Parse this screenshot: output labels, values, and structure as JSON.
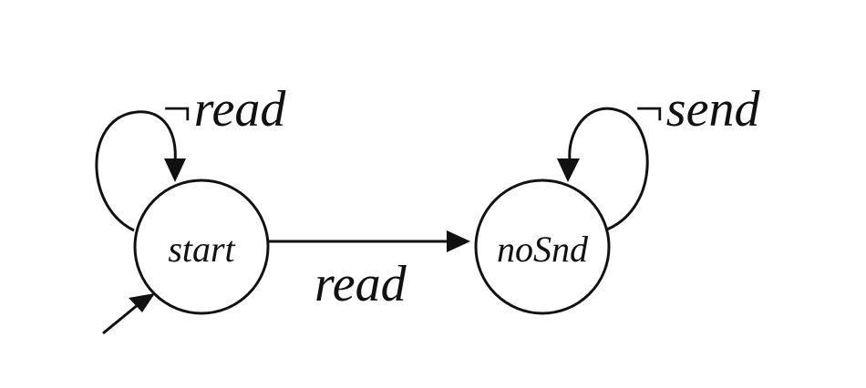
{
  "diagram": {
    "type": "state-machine",
    "states": [
      {
        "id": "start",
        "label": "start",
        "initial": true
      },
      {
        "id": "noSnd",
        "label": "noSnd",
        "initial": false
      }
    ],
    "transitions": [
      {
        "from": "start",
        "to": "start",
        "label": "¬read"
      },
      {
        "from": "start",
        "to": "noSnd",
        "label": "read"
      },
      {
        "from": "noSnd",
        "to": "noSnd",
        "label": "¬send"
      }
    ],
    "colors": {
      "ink": "#111111",
      "background": "#ffffff"
    }
  }
}
